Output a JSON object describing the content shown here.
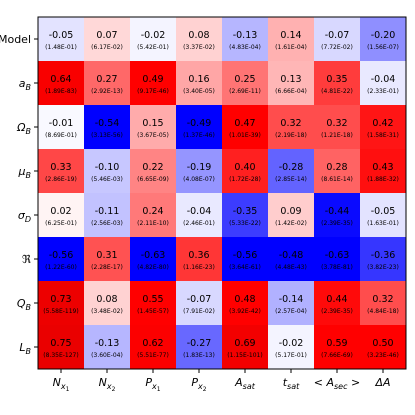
{
  "chart_data": {
    "type": "heatmap",
    "title": "",
    "xlabel": "",
    "ylabel": "",
    "columns": [
      "N_x1",
      "N_x2",
      "P_x1",
      "P_x2",
      "A_sat",
      "t_sat",
      "<A_sec>",
      "ΔA"
    ],
    "column_labels": [
      {
        "base": "N",
        "sub": "x",
        "subsub": "1"
      },
      {
        "base": "N",
        "sub": "x",
        "subsub": "2"
      },
      {
        "base": "P",
        "sub": "x",
        "subsub": "1"
      },
      {
        "base": "P",
        "sub": "x",
        "subsub": "2"
      },
      {
        "base": "A",
        "sub": "sat",
        "subsub": ""
      },
      {
        "base": "t",
        "sub": "sat",
        "subsub": ""
      },
      {
        "base": "< A",
        "sub": "sec",
        "subsub": "",
        "tail": " >"
      },
      {
        "base": "ΔA",
        "sub": "",
        "subsub": ""
      }
    ],
    "rows": [
      "Model",
      "a_B",
      "Ω_B",
      "μ_B",
      "σ_D",
      "ℜ",
      "Q_B",
      "L_B"
    ],
    "row_labels": [
      {
        "base": "Model",
        "sub": "",
        "plain": true
      },
      {
        "base": "a",
        "sub": "B"
      },
      {
        "base": "Ω",
        "sub": "B"
      },
      {
        "base": "μ",
        "sub": "B"
      },
      {
        "base": "σ",
        "sub": "D"
      },
      {
        "base": "ℜ",
        "sub": ""
      },
      {
        "base": "Q",
        "sub": "B"
      },
      {
        "base": "L",
        "sub": "B"
      }
    ],
    "color_scale": {
      "negative": "#0000ff",
      "zero": "#ffffff",
      "positive": "#ff0000",
      "dark_positive": "#b00000",
      "vmin": -0.8,
      "vmax": 0.8
    },
    "values": [
      [
        -0.05,
        0.07,
        -0.02,
        0.08,
        -0.13,
        0.14,
        -0.07,
        -0.2
      ],
      [
        0.64,
        0.27,
        0.49,
        0.16,
        0.25,
        0.13,
        0.35,
        -0.04
      ],
      [
        -0.01,
        -0.54,
        0.15,
        -0.49,
        0.47,
        0.32,
        0.32,
        0.42
      ],
      [
        0.33,
        -0.1,
        0.22,
        -0.19,
        0.4,
        -0.28,
        0.28,
        0.43
      ],
      [
        0.02,
        -0.11,
        0.24,
        -0.04,
        -0.35,
        0.09,
        -0.44,
        -0.05
      ],
      [
        -0.56,
        0.31,
        -0.63,
        0.36,
        -0.56,
        -0.48,
        -0.63,
        -0.36
      ],
      [
        0.73,
        0.08,
        0.55,
        -0.07,
        0.48,
        -0.14,
        0.44,
        0.32
      ],
      [
        0.75,
        -0.13,
        0.62,
        -0.27,
        0.69,
        -0.02,
        0.59,
        0.5
      ]
    ],
    "pvalues": [
      [
        "1.48E-01",
        "6.17E-02",
        "5.42E-01",
        "3.37E-02",
        "4.83E-04",
        "1.61E-04",
        "7.72E-02",
        "1.56E-07"
      ],
      [
        "1.89E-83",
        "2.92E-13",
        "9.17E-46",
        "3.40E-05",
        "2.69E-11",
        "6.66E-04",
        "4.81E-22",
        "2.33E-01"
      ],
      [
        "8.69E-01",
        "3.13E-56",
        "3.67E-05",
        "1.37E-46",
        "1.01E-39",
        "2.19E-18",
        "1.21E-18",
        "1.58E-31"
      ],
      [
        "2.86E-19",
        "5.46E-03",
        "6.65E-09",
        "4.08E-07",
        "1.72E-28",
        "2.85E-14",
        "8.61E-14",
        "1.88E-32"
      ],
      [
        "6.25E-01",
        "2.56E-03",
        "2.11E-10",
        "2.46E-01",
        "5.33E-22",
        "1.42E-02",
        "2.39E-35",
        "1.63E-01"
      ],
      [
        "1.22E-60",
        "2.28E-17",
        "4.82E-80",
        "1.16E-23",
        "3.64E-61",
        "4.48E-43",
        "3.78E-81",
        "3.82E-23"
      ],
      [
        "5.58E-119",
        "3.48E-02",
        "1.45E-57",
        "7.91E-02",
        "3.92E-42",
        "2.57E-04",
        "2.39E-35",
        "4.84E-18"
      ],
      [
        "8.35E-127",
        "3.60E-04",
        "5.51E-77",
        "1.83E-13",
        "1.15E-101",
        "5.17E-01",
        "7.66E-69",
        "3.23E-46"
      ]
    ]
  }
}
